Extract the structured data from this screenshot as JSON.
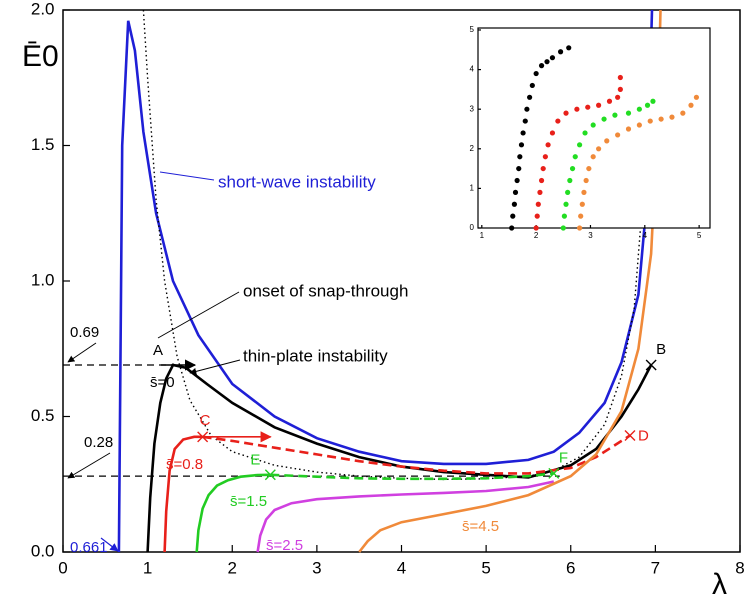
{
  "chart_data": [
    {
      "type": "line",
      "xlabel": "λ",
      "ylabel": "Ē0",
      "xlim": [
        0,
        8
      ],
      "ylim": [
        0,
        2
      ],
      "xticks": [
        0,
        1,
        2,
        3,
        4,
        5,
        6,
        7,
        8
      ],
      "yticks": [
        {
          "value": 0,
          "label": "0.0"
        },
        0.5,
        {
          "value": 1,
          "label": "1.0"
        },
        1.5,
        {
          "value": 2,
          "label": "2.0"
        }
      ],
      "series": [
        {
          "name": "short-wave instability",
          "color": "#1f1fd6",
          "dash": "solid",
          "x": [
            0.661,
            0.7,
            0.77,
            0.85,
            0.95,
            1.1,
            1.3,
            1.6,
            2,
            2.5,
            3,
            3.5,
            4,
            4.5,
            5,
            5.5,
            5.8,
            6.1,
            6.4,
            6.6,
            6.8,
            6.9,
            6.96
          ],
          "values": [
            0,
            1.5,
            1.96,
            1.85,
            1.55,
            1.25,
            1.0,
            0.8,
            0.62,
            0.5,
            0.42,
            0.37,
            0.335,
            0.325,
            0.325,
            0.34,
            0.37,
            0.44,
            0.55,
            0.7,
            0.95,
            1.3,
            2.0
          ]
        },
        {
          "name": "onset of snap-through",
          "color": "#000000",
          "dash": "dotted",
          "x": [
            0.95,
            1.0,
            1.1,
            1.2,
            1.35,
            1.5,
            1.75,
            2,
            2.5,
            3,
            3.5,
            4,
            4.5,
            5,
            5.5,
            5.8,
            6.1,
            6.4,
            6.6,
            6.75,
            6.85,
            6.9
          ],
          "values": [
            2.0,
            1.75,
            1.3,
            1.0,
            0.72,
            0.56,
            0.43,
            0.37,
            0.32,
            0.295,
            0.28,
            0.272,
            0.268,
            0.27,
            0.28,
            0.3,
            0.35,
            0.47,
            0.65,
            0.9,
            1.3,
            1.6
          ]
        },
        {
          "name": "s̄=0",
          "color": "#000000",
          "dash": "solid",
          "x": [
            1,
            1.03,
            1.08,
            1.15,
            1.22,
            1.3,
            1.45,
            1.7,
            2,
            2.5,
            3,
            3.5,
            4,
            4.5,
            5,
            5.5,
            6,
            6.3,
            6.6,
            6.8,
            6.95
          ],
          "values": [
            0,
            0.2,
            0.4,
            0.55,
            0.64,
            0.69,
            0.68,
            0.62,
            0.55,
            0.46,
            0.4,
            0.35,
            0.315,
            0.295,
            0.285,
            0.275,
            0.32,
            0.38,
            0.5,
            0.6,
            0.69
          ]
        },
        {
          "name": "s̄=0.8",
          "color": "#e8201a",
          "dash": "solid",
          "x": [
            1.2,
            1.22,
            1.26,
            1.32,
            1.42,
            1.55,
            1.65
          ],
          "values": [
            0,
            0.15,
            0.3,
            0.38,
            0.415,
            0.425,
            0.425
          ]
        },
        {
          "color": "#e8201a",
          "dash": "dashed",
          "x": [
            1.65,
            2,
            2.5,
            3,
            3.5,
            4,
            4.5,
            5,
            5.5,
            6,
            6.3,
            6.5,
            6.7
          ],
          "values": [
            0.425,
            0.41,
            0.385,
            0.36,
            0.335,
            0.315,
            0.3,
            0.29,
            0.29,
            0.31,
            0.35,
            0.39,
            0.43
          ]
        },
        {
          "name": "s̄=1.5",
          "color": "#22cc22",
          "dash": "solid",
          "x": [
            1.58,
            1.6,
            1.65,
            1.72,
            1.82,
            1.95,
            2.1,
            2.3,
            2.45
          ],
          "values": [
            0,
            0.08,
            0.16,
            0.21,
            0.245,
            0.265,
            0.278,
            0.284,
            0.285
          ]
        },
        {
          "color": "#22cc22",
          "dash": "dashed",
          "x": [
            2.45,
            3,
            3.5,
            4,
            4.5,
            5,
            5.5,
            5.8
          ],
          "values": [
            0.285,
            0.278,
            0.272,
            0.27,
            0.27,
            0.272,
            0.28,
            0.29
          ]
        },
        {
          "name": "s̄=2.5",
          "color": "#d040e0",
          "dash": "solid",
          "x": [
            2.3,
            2.33,
            2.4,
            2.5,
            2.7,
            3,
            3.5,
            4,
            4.5,
            5,
            5.5,
            5.8
          ],
          "values": [
            0,
            0.06,
            0.12,
            0.155,
            0.18,
            0.195,
            0.205,
            0.212,
            0.218,
            0.225,
            0.24,
            0.26
          ]
        },
        {
          "name": "s̄=4.5",
          "color": "#f08a3a",
          "dash": "solid",
          "x": [
            3.5,
            3.6,
            3.75,
            4,
            4.5,
            5,
            5.5,
            6,
            6.3,
            6.6,
            6.8,
            6.95,
            7.03,
            7.06
          ],
          "values": [
            0,
            0.04,
            0.08,
            0.11,
            0.14,
            0.17,
            0.21,
            0.28,
            0.36,
            0.52,
            0.75,
            1.1,
            1.6,
            2.0
          ]
        }
      ],
      "points": [
        {
          "label": "A",
          "x": 1.3,
          "y": 0.69,
          "color": "#000000",
          "marker": false
        },
        {
          "label": "B",
          "x": 6.95,
          "y": 0.69,
          "color": "#000000",
          "marker": true
        },
        {
          "label": "C",
          "x": 1.65,
          "y": 0.425,
          "color": "#e8201a",
          "marker": true
        },
        {
          "label": "D",
          "x": 6.7,
          "y": 0.43,
          "color": "#e8201a",
          "marker": true
        },
        {
          "label": "E",
          "x": 2.45,
          "y": 0.285,
          "color": "#22cc22",
          "marker": true
        },
        {
          "label": "F",
          "x": 5.8,
          "y": 0.29,
          "color": "#22cc22",
          "marker": true
        }
      ],
      "hlines": [
        {
          "value": 0.69,
          "label": "0.69",
          "xmax": 1.3
        },
        {
          "value": 0.28,
          "label": "0.28",
          "xmax": 5.87
        }
      ],
      "vmarks": [
        {
          "value": 0.661,
          "label": "0.661",
          "color": "#1f1fd6"
        }
      ],
      "annotations": [
        "thin-plate instability"
      ]
    },
    {
      "type": "scatter",
      "xlim": [
        0.93,
        5.2
      ],
      "ylim": [
        0,
        5.05
      ],
      "xticks": [
        1,
        2,
        3,
        4,
        5
      ],
      "yticks": [
        0,
        1,
        2,
        3,
        4,
        5
      ],
      "series": [
        {
          "color": "#000000",
          "x": [
            1.55,
            1.57,
            1.6,
            1.62,
            1.65,
            1.68,
            1.7,
            1.73,
            1.76,
            1.8,
            1.83,
            1.88,
            1.93,
            2.0,
            2.1,
            2.2,
            2.3,
            2.45,
            2.6
          ],
          "values": [
            0,
            0.3,
            0.6,
            0.9,
            1.2,
            1.5,
            1.8,
            2.1,
            2.4,
            2.7,
            3.0,
            3.3,
            3.6,
            3.9,
            4.1,
            4.2,
            4.3,
            4.45,
            4.55
          ]
        },
        {
          "color": "#e8201a",
          "x": [
            2.0,
            2.02,
            2.04,
            2.07,
            2.1,
            2.13,
            2.17,
            2.22,
            2.3,
            2.4,
            2.55,
            2.75,
            2.95,
            3.15,
            3.35,
            3.5,
            3.55,
            3.55
          ],
          "values": [
            0,
            0.3,
            0.6,
            0.9,
            1.2,
            1.5,
            1.8,
            2.1,
            2.4,
            2.7,
            2.9,
            3.0,
            3.05,
            3.1,
            3.2,
            3.3,
            3.5,
            3.8
          ]
        },
        {
          "color": "#22dd22",
          "x": [
            2.5,
            2.52,
            2.55,
            2.58,
            2.62,
            2.67,
            2.72,
            2.8,
            2.9,
            3.05,
            3.25,
            3.45,
            3.7,
            3.9,
            4.05,
            4.15
          ],
          "values": [
            0,
            0.3,
            0.6,
            0.9,
            1.2,
            1.5,
            1.8,
            2.1,
            2.4,
            2.6,
            2.75,
            2.85,
            2.9,
            3.0,
            3.1,
            3.2
          ]
        },
        {
          "color": "#f08a3a",
          "x": [
            2.8,
            2.82,
            2.85,
            2.88,
            2.92,
            2.97,
            3.05,
            3.15,
            3.3,
            3.5,
            3.7,
            3.9,
            4.1,
            4.3,
            4.5,
            4.7,
            4.85,
            4.95
          ],
          "values": [
            0,
            0.3,
            0.6,
            0.9,
            1.2,
            1.5,
            1.8,
            2.0,
            2.2,
            2.35,
            2.5,
            2.6,
            2.7,
            2.75,
            2.8,
            2.9,
            3.1,
            3.3
          ]
        }
      ]
    }
  ]
}
